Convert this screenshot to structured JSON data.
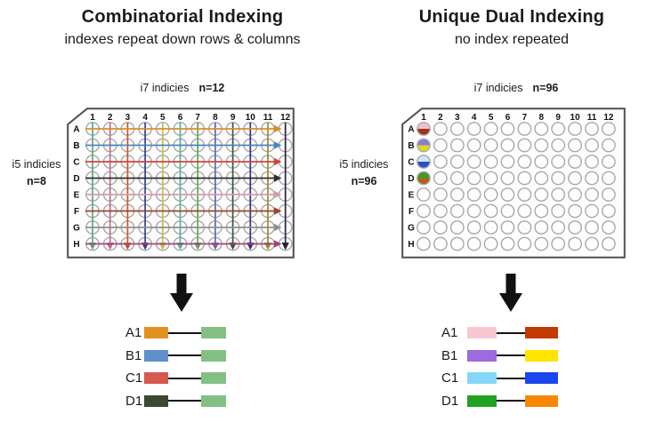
{
  "left": {
    "title": "Combinatorial Indexing",
    "subtitle": "indexes repeat down rows & columns",
    "i7_label": "i7 indicies",
    "i7_n": "n=12",
    "i5_label": "i5 indicies",
    "i5_n": "n=8",
    "plate": {
      "rows": [
        "A",
        "B",
        "C",
        "D",
        "E",
        "F",
        "G",
        "H"
      ],
      "cols": [
        "1",
        "2",
        "3",
        "4",
        "5",
        "6",
        "7",
        "8",
        "9",
        "10",
        "11",
        "12"
      ],
      "row_arrow_colors": [
        "#D98E2B",
        "#4F83BC",
        "#CC4642",
        "#2E2E2E",
        "#D39DA9",
        "#99462C",
        "#8F8F8F",
        "#A44577"
      ],
      "col_arrow_colors": [
        "#5AA87E",
        "#C36A90",
        "#C65722",
        "#333F8F",
        "#C4C03C",
        "#55ADA6",
        "#61A351",
        "#5D69B2",
        "#38573C",
        "#2B357F",
        "#988C28",
        "#262640"
      ]
    },
    "legend": [
      {
        "label": "A1",
        "left_color": "#E2921E",
        "right_color": "#83C083"
      },
      {
        "label": "B1",
        "left_color": "#5F8FC7",
        "right_color": "#83C083"
      },
      {
        "label": "C1",
        "left_color": "#D6584E",
        "right_color": "#83C083"
      },
      {
        "label": "D1",
        "left_color": "#3B4931",
        "right_color": "#83C083"
      }
    ]
  },
  "right": {
    "title": "Unique Dual Indexing",
    "subtitle": "no index repeated",
    "i7_label": "i7 indicies",
    "i7_n": "n=96",
    "i5_label": "i5 indicies",
    "i5_n": "n=96",
    "plate": {
      "rows": [
        "A",
        "B",
        "C",
        "D",
        "E",
        "F",
        "G",
        "H"
      ],
      "cols": [
        "1",
        "2",
        "3",
        "4",
        "5",
        "6",
        "7",
        "8",
        "9",
        "10",
        "11",
        "12"
      ],
      "filled_wells": [
        {
          "row": "A",
          "col": "1",
          "top": "#F3C1C9",
          "bottom": "#A2331B"
        },
        {
          "row": "B",
          "col": "1",
          "top": "#8B7BD6",
          "bottom": "#E5D428"
        },
        {
          "row": "C",
          "col": "1",
          "top": "#CDE7F4",
          "bottom": "#2C50C4"
        },
        {
          "row": "D",
          "col": "1",
          "top": "#3F9B2A",
          "bottom": "#AD6218"
        }
      ]
    },
    "legend": [
      {
        "label": "A1",
        "left_color": "#F8C7D1",
        "right_color": "#C23A00"
      },
      {
        "label": "B1",
        "left_color": "#9B6BDF",
        "right_color": "#FFE400"
      },
      {
        "label": "C1",
        "left_color": "#85D6F8",
        "right_color": "#1A46EE"
      },
      {
        "label": "D1",
        "left_color": "#21A321",
        "right_color": "#F98700"
      }
    ]
  }
}
